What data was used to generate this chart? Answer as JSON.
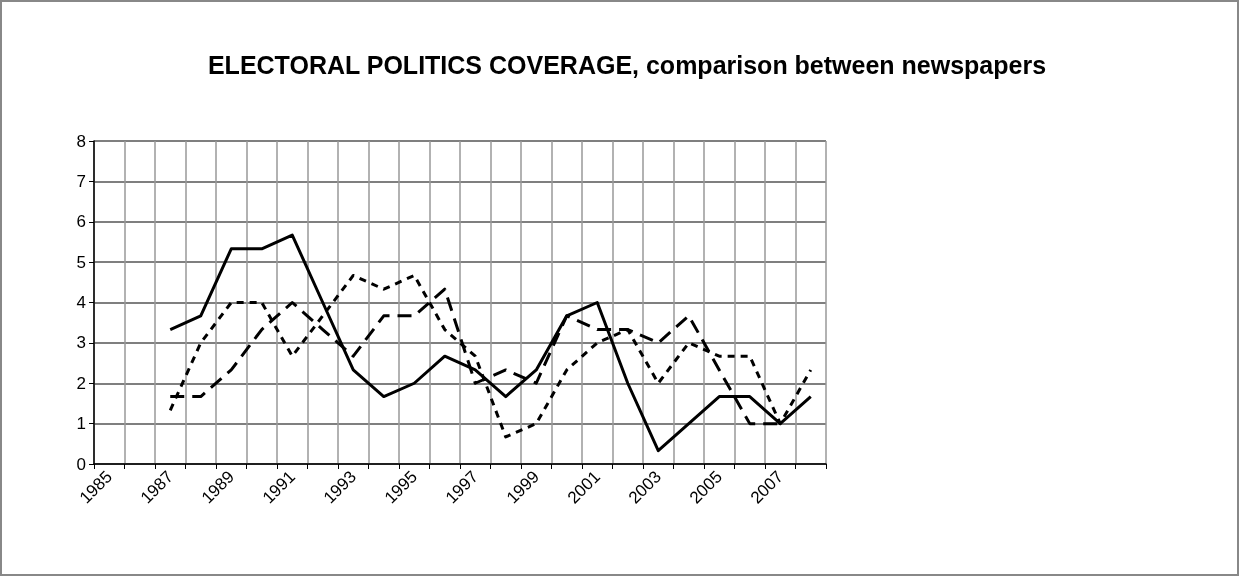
{
  "chart_data": {
    "type": "line",
    "title": "ELECTORAL POLITICS COVERAGE, comparison between newspapers",
    "categories": [
      "1985",
      null,
      "1987",
      null,
      "1989",
      null,
      "1991",
      null,
      "1993",
      null,
      "1995",
      null,
      "1997",
      null,
      "1999",
      null,
      "2001",
      null,
      "2003",
      null,
      "2005",
      null,
      "2007",
      null
    ],
    "series": [
      {
        "color": "#000000",
        "line_style": "solid",
        "values": [
          null,
          null,
          3.33,
          3.67,
          5.33,
          5.33,
          5.67,
          4,
          2.33,
          1.67,
          2,
          2.67,
          2.33,
          1.67,
          2.33,
          3.67,
          4,
          2,
          0.33,
          1,
          1.67,
          1.67,
          1,
          1.67
        ]
      },
      {
        "color": "#000000",
        "line_style": "dotted",
        "values": [
          null,
          null,
          1.33,
          3,
          4,
          4,
          2.67,
          3.67,
          4.67,
          4.33,
          4.67,
          3.33,
          2.67,
          0.67,
          1,
          2.33,
          3,
          3.33,
          2,
          3,
          2.67,
          2.67,
          1,
          2.33
        ]
      },
      {
        "color": "#000000",
        "line_style": "dashed",
        "values": [
          null,
          null,
          1.67,
          1.67,
          2.33,
          3.33,
          4,
          3.33,
          2.67,
          3.67,
          3.67,
          4.33,
          2,
          2.33,
          2,
          3.67,
          3.33,
          3.33,
          3,
          3.67,
          2.33,
          1,
          1,
          null
        ]
      }
    ],
    "ylim": [
      0,
      8
    ],
    "yticks": [
      0,
      1,
      2,
      3,
      4,
      5,
      6,
      7,
      8
    ],
    "grid": true,
    "marker": "none"
  }
}
